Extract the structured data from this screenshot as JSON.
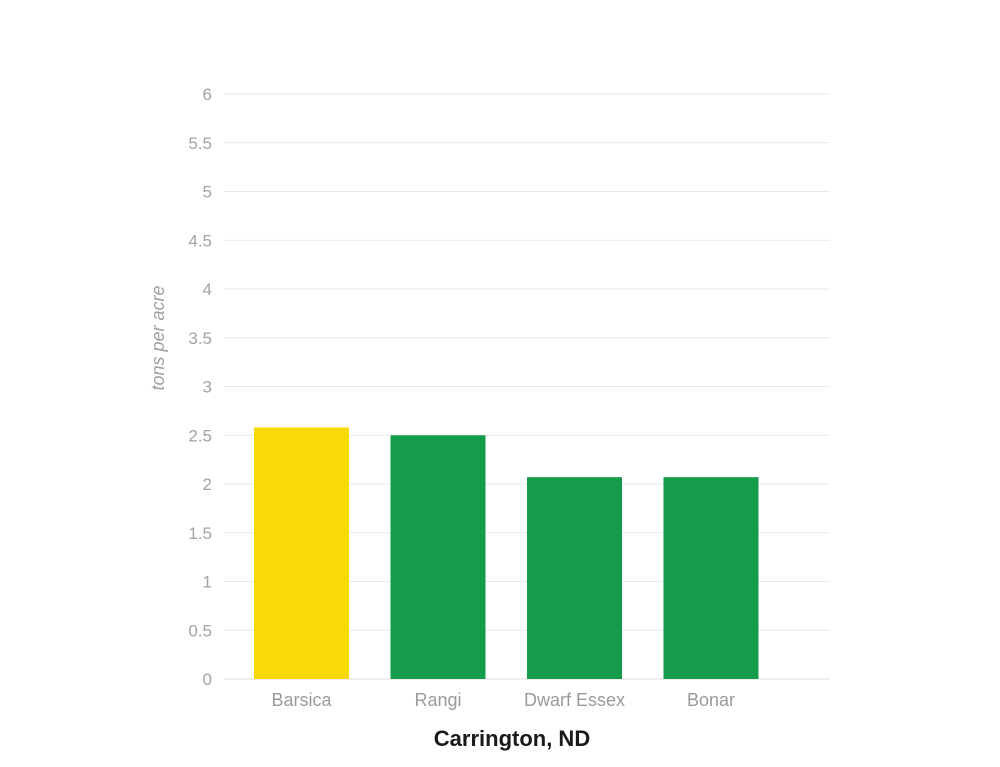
{
  "chart_data": {
    "type": "bar",
    "categories": [
      "Barsica",
      "Rangi",
      "Dwarf Essex",
      "Bonar"
    ],
    "values": [
      2.58,
      2.5,
      2.07,
      2.07
    ],
    "bar_colors": [
      "#f9d906",
      "#149c4a",
      "#149c4a",
      "#149c4a"
    ],
    "title": "",
    "xlabel": "Carrington, ND",
    "ylabel": "tons per acre",
    "ylim": [
      0,
      6
    ],
    "yticks": [
      "0",
      "0.5",
      "1",
      "1.5",
      "2",
      "2.5",
      "3",
      "3.5",
      "4",
      "4.5",
      "5",
      "5.5",
      "6"
    ],
    "grid": true,
    "legend": "none"
  }
}
